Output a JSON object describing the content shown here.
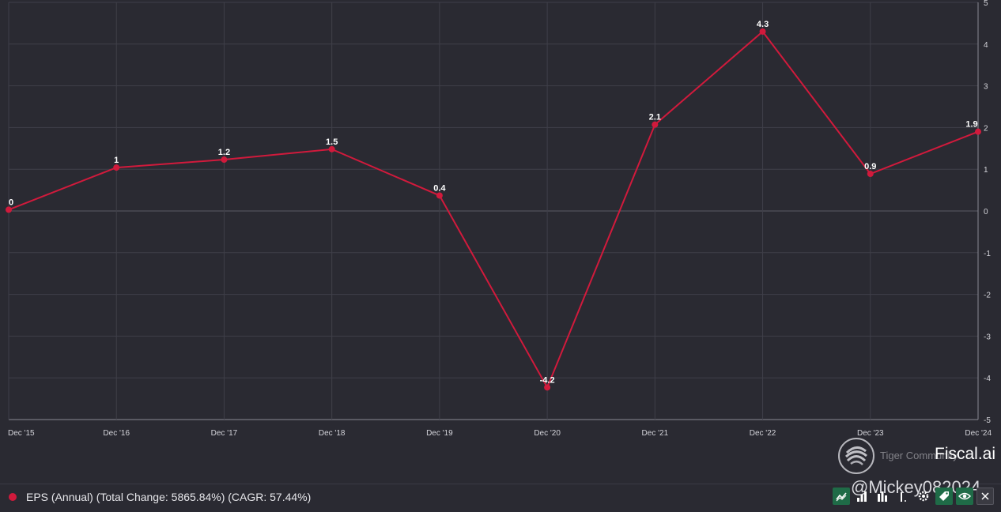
{
  "chart_data": {
    "type": "line",
    "categories": [
      "Dec '15",
      "Dec '16",
      "Dec '17",
      "Dec '18",
      "Dec '19",
      "Dec '20",
      "Dec '21",
      "Dec '22",
      "Dec '23",
      "Dec '24"
    ],
    "series": [
      {
        "name": "EPS (Annual)",
        "values": [
          0.03,
          1.04,
          1.23,
          1.48,
          0.37,
          -4.23,
          2.07,
          4.3,
          0.89,
          1.9
        ],
        "labels": [
          "0",
          "1",
          "1.2",
          "1.5",
          "0.4",
          "-4.2",
          "2.1",
          "4.3",
          "0.9",
          "1.9"
        ],
        "color": "#d11a3c"
      }
    ],
    "ylim": [
      -5,
      5
    ],
    "yticks": [
      "5",
      "4",
      "3",
      "2",
      "1",
      "0",
      "-1",
      "-2",
      "-3",
      "-4",
      "-5"
    ],
    "y_axis_position": "right",
    "grid": true,
    "legend_position": "bottom-left"
  },
  "legend": {
    "text": "EPS (Annual) (Total Change: 5865.84%) (CAGR: 57.44%)"
  },
  "watermark": {
    "community": "Tiger Community",
    "brand": "Fiscal.ai",
    "handle": "@Mickey082024"
  },
  "toolbar": {
    "icons": [
      "line-chart-icon",
      "bar-chart-icon",
      "bar-chart-alt-icon",
      "more-icon",
      "gear-icon",
      "tag-icon",
      "eye-icon",
      "close-icon"
    ]
  },
  "colors": {
    "background": "#2a2a32",
    "grid": "#3f3f49",
    "series": "#d11a3c",
    "toolbar_green": "#1f6b47"
  }
}
